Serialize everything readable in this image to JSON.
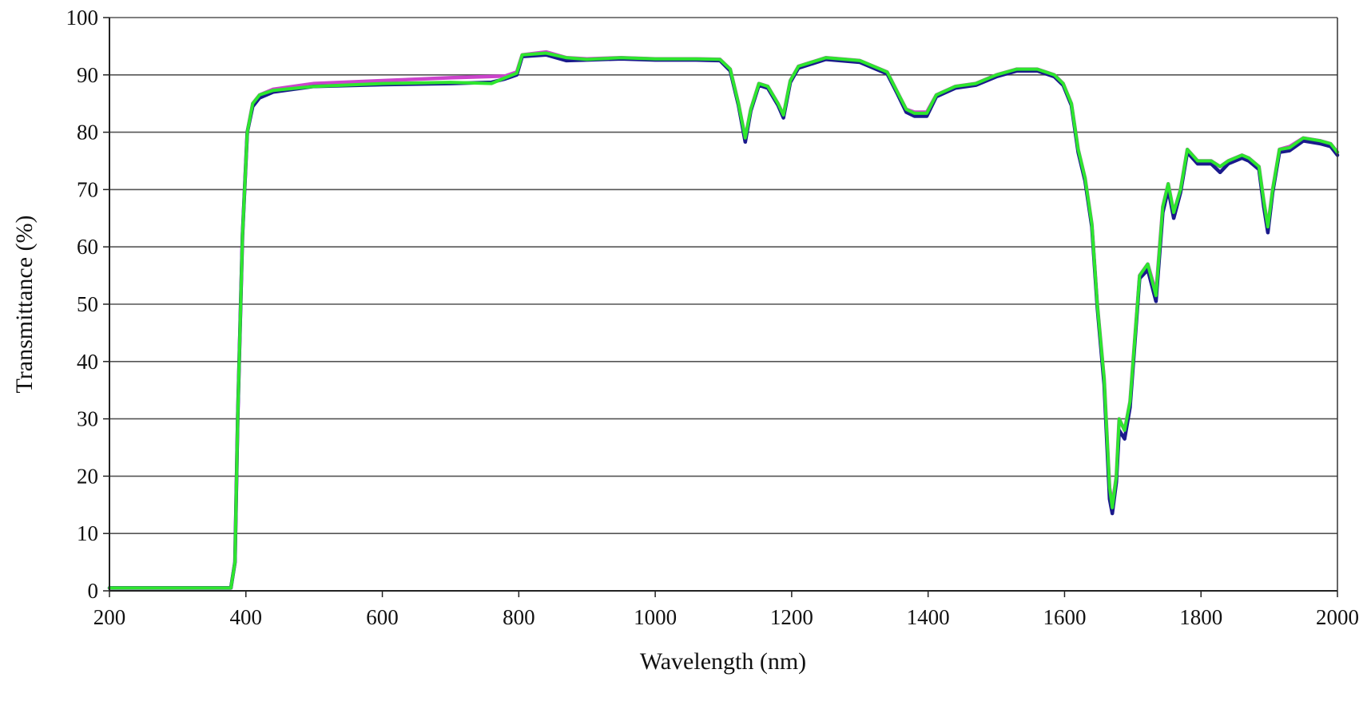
{
  "chart_data": {
    "type": "line",
    "title": "",
    "xlabel": "Wavelength (nm)",
    "ylabel": "Transmittance (%)",
    "xlim": [
      200,
      2000
    ],
    "ylim": [
      0,
      100
    ],
    "x_ticks": [
      "200",
      "400",
      "600",
      "800",
      "1000",
      "1200",
      "1400",
      "1600",
      "1800",
      "2000"
    ],
    "y_ticks": [
      "0",
      "10",
      "20",
      "30",
      "40",
      "50",
      "60",
      "70",
      "80",
      "90",
      "100"
    ],
    "grid": "horizontal",
    "legend": "none",
    "series": [
      {
        "color": "#cc44cc",
        "points": [
          [
            200,
            0.5
          ],
          [
            378,
            0.5
          ],
          [
            384,
            5
          ],
          [
            388,
            30
          ],
          [
            395,
            62
          ],
          [
            402,
            80
          ],
          [
            410,
            85
          ],
          [
            420,
            86.5
          ],
          [
            440,
            87.5
          ],
          [
            500,
            88.5
          ],
          [
            600,
            89
          ],
          [
            700,
            89.5
          ],
          [
            780,
            89.8
          ],
          [
            797,
            90.5
          ],
          [
            805,
            93.5
          ],
          [
            840,
            94
          ],
          [
            870,
            93
          ],
          [
            900,
            92.8
          ],
          [
            950,
            93
          ],
          [
            1000,
            92.8
          ],
          [
            1060,
            92.8
          ],
          [
            1095,
            92.7
          ],
          [
            1110,
            91
          ],
          [
            1122,
            85
          ],
          [
            1132,
            79
          ],
          [
            1140,
            84
          ],
          [
            1152,
            88.5
          ],
          [
            1165,
            88
          ],
          [
            1180,
            85
          ],
          [
            1188,
            83
          ],
          [
            1198,
            89
          ],
          [
            1210,
            91.5
          ],
          [
            1250,
            93
          ],
          [
            1300,
            92.5
          ],
          [
            1340,
            90.5
          ],
          [
            1355,
            87
          ],
          [
            1368,
            84
          ],
          [
            1380,
            83.5
          ],
          [
            1398,
            83.5
          ],
          [
            1412,
            86.5
          ],
          [
            1440,
            88
          ],
          [
            1470,
            88.5
          ],
          [
            1500,
            90
          ],
          [
            1530,
            91
          ],
          [
            1560,
            91
          ],
          [
            1585,
            90
          ],
          [
            1598,
            88.5
          ],
          [
            1610,
            85
          ],
          [
            1620,
            77
          ],
          [
            1630,
            72
          ],
          [
            1640,
            64
          ],
          [
            1648,
            50
          ],
          [
            1658,
            37
          ],
          [
            1666,
            18
          ],
          [
            1670,
            15
          ],
          [
            1676,
            20
          ],
          [
            1680,
            30
          ],
          [
            1688,
            28
          ],
          [
            1696,
            33
          ],
          [
            1710,
            55
          ],
          [
            1722,
            57
          ],
          [
            1734,
            52
          ],
          [
            1744,
            67
          ],
          [
            1752,
            71
          ],
          [
            1760,
            66
          ],
          [
            1770,
            70
          ],
          [
            1780,
            77
          ],
          [
            1795,
            75
          ],
          [
            1815,
            75
          ],
          [
            1828,
            74
          ],
          [
            1840,
            75
          ],
          [
            1860,
            76
          ],
          [
            1870,
            75.5
          ],
          [
            1885,
            74
          ],
          [
            1892,
            68
          ],
          [
            1898,
            63.5
          ],
          [
            1905,
            70
          ],
          [
            1915,
            77
          ],
          [
            1930,
            77.5
          ],
          [
            1950,
            79
          ],
          [
            1975,
            78.5
          ],
          [
            1990,
            78
          ],
          [
            2000,
            76.5
          ]
        ]
      },
      {
        "color": "#1a1a8c",
        "points": [
          [
            200,
            0.5
          ],
          [
            378,
            0.5
          ],
          [
            384,
            5
          ],
          [
            388,
            30
          ],
          [
            395,
            62
          ],
          [
            402,
            80
          ],
          [
            410,
            84.5
          ],
          [
            420,
            86
          ],
          [
            440,
            87
          ],
          [
            500,
            88
          ],
          [
            600,
            88.3
          ],
          [
            700,
            88.5
          ],
          [
            760,
            88.7
          ],
          [
            780,
            89.3
          ],
          [
            797,
            90
          ],
          [
            805,
            93.2
          ],
          [
            840,
            93.5
          ],
          [
            870,
            92.5
          ],
          [
            900,
            92.6
          ],
          [
            950,
            92.8
          ],
          [
            1000,
            92.6
          ],
          [
            1060,
            92.6
          ],
          [
            1095,
            92.5
          ],
          [
            1110,
            90.7
          ],
          [
            1122,
            84.7
          ],
          [
            1132,
            78.3
          ],
          [
            1140,
            83.7
          ],
          [
            1152,
            88.2
          ],
          [
            1165,
            87.7
          ],
          [
            1180,
            84.7
          ],
          [
            1188,
            82.5
          ],
          [
            1198,
            88.7
          ],
          [
            1210,
            91.2
          ],
          [
            1250,
            92.7
          ],
          [
            1300,
            92.2
          ],
          [
            1340,
            90.2
          ],
          [
            1355,
            86.7
          ],
          [
            1368,
            83.5
          ],
          [
            1380,
            82.8
          ],
          [
            1398,
            82.8
          ],
          [
            1412,
            86.2
          ],
          [
            1440,
            87.7
          ],
          [
            1470,
            88.2
          ],
          [
            1500,
            89.7
          ],
          [
            1530,
            90.7
          ],
          [
            1560,
            90.7
          ],
          [
            1585,
            89.7
          ],
          [
            1598,
            88.2
          ],
          [
            1610,
            84.7
          ],
          [
            1620,
            76.5
          ],
          [
            1630,
            71.5
          ],
          [
            1640,
            63.5
          ],
          [
            1648,
            49.5
          ],
          [
            1658,
            36
          ],
          [
            1666,
            16
          ],
          [
            1670,
            13.5
          ],
          [
            1676,
            19
          ],
          [
            1680,
            28
          ],
          [
            1688,
            26.5
          ],
          [
            1696,
            32
          ],
          [
            1710,
            54.5
          ],
          [
            1722,
            56
          ],
          [
            1734,
            50.5
          ],
          [
            1744,
            66
          ],
          [
            1752,
            70
          ],
          [
            1760,
            65
          ],
          [
            1770,
            69.5
          ],
          [
            1780,
            76.5
          ],
          [
            1795,
            74.5
          ],
          [
            1815,
            74.5
          ],
          [
            1828,
            73
          ],
          [
            1840,
            74.5
          ],
          [
            1860,
            75.5
          ],
          [
            1870,
            75
          ],
          [
            1885,
            73.5
          ],
          [
            1892,
            67
          ],
          [
            1898,
            62.5
          ],
          [
            1905,
            69.5
          ],
          [
            1915,
            76.5
          ],
          [
            1930,
            76.8
          ],
          [
            1950,
            78.5
          ],
          [
            1975,
            78
          ],
          [
            1990,
            77.5
          ],
          [
            2000,
            76
          ]
        ]
      },
      {
        "color": "#2ee62e",
        "points": [
          [
            200,
            0.5
          ],
          [
            378,
            0.5
          ],
          [
            384,
            5
          ],
          [
            388,
            30
          ],
          [
            395,
            62
          ],
          [
            402,
            80
          ],
          [
            410,
            85
          ],
          [
            420,
            86.5
          ],
          [
            440,
            87.3
          ],
          [
            500,
            88
          ],
          [
            600,
            88.5
          ],
          [
            700,
            88.7
          ],
          [
            760,
            88.5
          ],
          [
            780,
            89.5
          ],
          [
            797,
            90.3
          ],
          [
            805,
            93.5
          ],
          [
            840,
            93.8
          ],
          [
            870,
            93
          ],
          [
            900,
            92.7
          ],
          [
            950,
            93
          ],
          [
            1000,
            92.8
          ],
          [
            1060,
            92.8
          ],
          [
            1095,
            92.7
          ],
          [
            1110,
            91
          ],
          [
            1122,
            85
          ],
          [
            1132,
            79
          ],
          [
            1140,
            84
          ],
          [
            1152,
            88.5
          ],
          [
            1165,
            88
          ],
          [
            1180,
            85
          ],
          [
            1188,
            83
          ],
          [
            1198,
            89
          ],
          [
            1210,
            91.5
          ],
          [
            1250,
            93
          ],
          [
            1300,
            92.5
          ],
          [
            1340,
            90.5
          ],
          [
            1355,
            87
          ],
          [
            1368,
            84
          ],
          [
            1380,
            83.3
          ],
          [
            1398,
            83.3
          ],
          [
            1412,
            86.5
          ],
          [
            1440,
            88
          ],
          [
            1470,
            88.5
          ],
          [
            1500,
            90
          ],
          [
            1530,
            91
          ],
          [
            1560,
            91
          ],
          [
            1585,
            90
          ],
          [
            1598,
            88.5
          ],
          [
            1610,
            85
          ],
          [
            1620,
            77
          ],
          [
            1630,
            72
          ],
          [
            1640,
            64
          ],
          [
            1648,
            50
          ],
          [
            1658,
            37
          ],
          [
            1666,
            18
          ],
          [
            1670,
            14.5
          ],
          [
            1676,
            20
          ],
          [
            1680,
            30
          ],
          [
            1688,
            28
          ],
          [
            1696,
            33
          ],
          [
            1710,
            55
          ],
          [
            1722,
            57
          ],
          [
            1734,
            51.5
          ],
          [
            1744,
            67
          ],
          [
            1752,
            71
          ],
          [
            1760,
            66
          ],
          [
            1770,
            70
          ],
          [
            1780,
            77
          ],
          [
            1795,
            75
          ],
          [
            1815,
            75
          ],
          [
            1828,
            74
          ],
          [
            1840,
            75
          ],
          [
            1860,
            76
          ],
          [
            1870,
            75.5
          ],
          [
            1885,
            74
          ],
          [
            1892,
            68
          ],
          [
            1898,
            63.5
          ],
          [
            1905,
            70
          ],
          [
            1915,
            77
          ],
          [
            1930,
            77.3
          ],
          [
            1950,
            79
          ],
          [
            1975,
            78.5
          ],
          [
            1990,
            78
          ],
          [
            2000,
            76.5
          ]
        ]
      }
    ]
  }
}
